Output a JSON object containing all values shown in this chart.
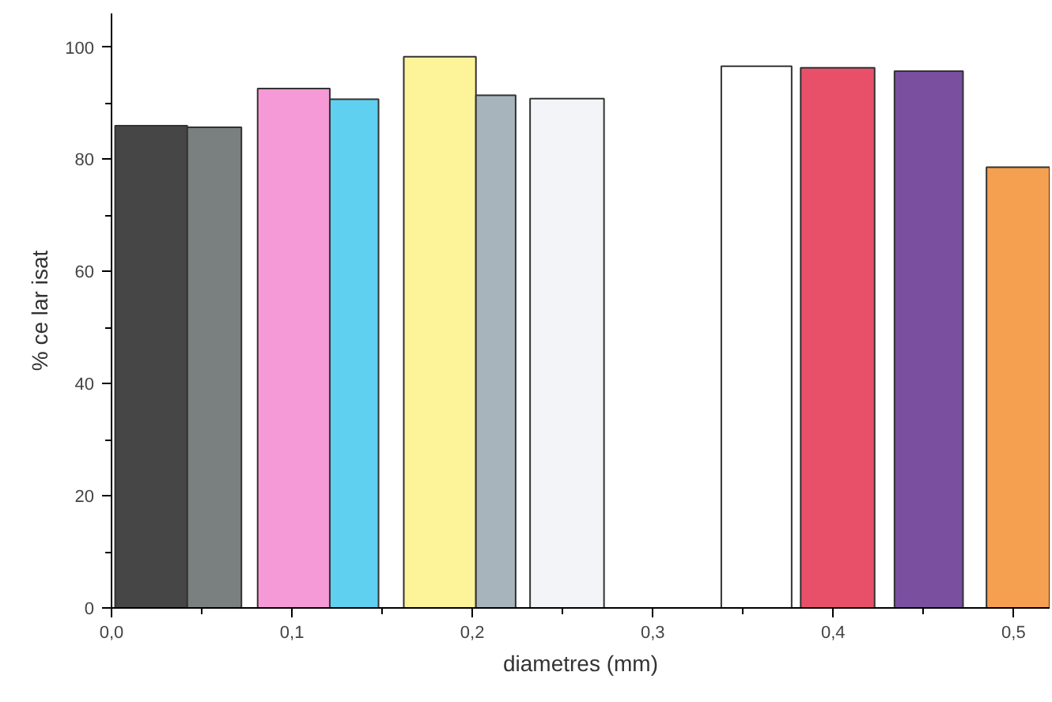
{
  "chart_data": {
    "type": "histogram",
    "xlabel": "diametres (mm)",
    "ylabel": "% ce lar isat",
    "bins": [
      0.002,
      0.042,
      0.072,
      0.081,
      0.121,
      0.148,
      0.162,
      0.202,
      0.224,
      0.232,
      0.273,
      0.338,
      0.377,
      0.382,
      0.423,
      0.434,
      0.472,
      0.485,
      0.52
    ],
    "values": [
      86,
      85.7,
      0,
      92.6,
      90.7,
      0,
      98.3,
      91.4,
      0,
      90.8,
      0,
      96.6,
      0,
      96.3,
      0,
      95.7,
      0,
      78.6
    ],
    "colors": [
      "#464646",
      "#7a7f7f",
      "#ffffff",
      "#f59ad6",
      "#5fd0f0",
      "#ffffff",
      "#fdf49a",
      "#a8b4bc",
      "#ffffff",
      "#f2f4f8",
      "#ffffff",
      "#ffffff",
      "#ffffff",
      "#e8506a",
      "#ffffff",
      "#7a4fa0",
      "#ffffff",
      "#f5a050"
    ],
    "xlim": [
      0,
      0.52
    ],
    "ylim": [
      0,
      106
    ],
    "xticks": [
      {
        "value": 0,
        "label": "0,0"
      },
      {
        "value": 0.1,
        "label": "0,1"
      },
      {
        "value": 0.2,
        "label": "0,2"
      },
      {
        "value": 0.3,
        "label": "0,3"
      },
      {
        "value": 0.4,
        "label": "0,4"
      },
      {
        "value": 0.5,
        "label": "0,5"
      }
    ],
    "yticks": [
      0,
      20,
      40,
      60,
      80,
      100
    ],
    "grid": false
  }
}
